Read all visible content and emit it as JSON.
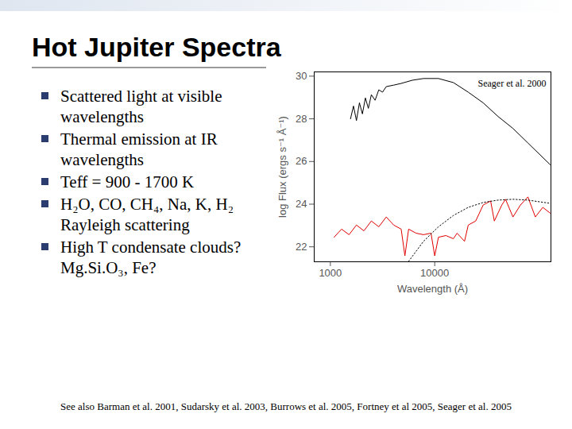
{
  "title": "Hot Jupiter Spectra",
  "bullets": [
    "Scattered light at visible wavelengths",
    "Thermal emission at IR wavelengths",
    "Teff = 900 - 1700 K",
    "H₂O, CO, CH₄, Na, K, H₂ Rayleigh scattering",
    "High T condensate clouds? Mg.Si.O₃, Fe?"
  ],
  "footer": "See also Barman et al. 2001,  Sudarsky et al. 2003, Burrows et al. 2005, Fortney et al 2005, Seager et al. 2005",
  "chart_data": {
    "type": "line",
    "annotation": "Seager et al. 2000",
    "x_label": "Wavelength (Å)",
    "y_label": "log Flux (ergs s⁻¹ Å⁻¹)",
    "log": "x",
    "grid": false,
    "xlim": [
      700,
      130000
    ],
    "xticks": [
      1000,
      10000
    ],
    "ylim": [
      21.3,
      30.2
    ],
    "yticks": [
      22,
      24,
      26,
      28,
      30
    ],
    "series": [
      {
        "color": "#000000",
        "line_style": "solid",
        "x": [
          1560,
          1665,
          1778,
          1899,
          2028,
          2166,
          2313,
          2470,
          2683,
          2912,
          3162,
          3433,
          4047,
          4771,
          6106,
          7815,
          10860,
          15090,
          20960,
          29130,
          40470,
          56230,
          78150,
          127900
        ],
        "values": [
          28.0,
          28.6,
          27.92,
          28.75,
          28.23,
          28.98,
          28.49,
          29.13,
          28.87,
          29.36,
          29.25,
          29.51,
          29.58,
          29.66,
          29.81,
          29.89,
          29.89,
          29.7,
          29.25,
          28.75,
          28.11,
          27.55,
          26.87,
          25.85
        ]
      },
      {
        "color": "#e00000",
        "line_style": "solid",
        "x": [
          1086,
          1280,
          1510,
          1778,
          2096,
          2470,
          2912,
          3433,
          4047,
          4771,
          5179,
          5623,
          6629,
          7815,
          9213,
          10000,
          10860,
          12800,
          15090,
          16380,
          19310,
          20960,
          24710,
          29130,
          34340,
          37260,
          43940,
          47720,
          56230,
          66290,
          78150,
          92130,
          108600,
          127900
        ],
        "values": [
          22.45,
          22.83,
          22.57,
          23.02,
          22.75,
          23.21,
          22.94,
          23.4,
          23.02,
          22.83,
          21.58,
          22.83,
          22.64,
          22.57,
          22.64,
          21.58,
          22.45,
          22.53,
          22.38,
          22.64,
          22.26,
          23.02,
          23.21,
          23.96,
          24.15,
          23.21,
          23.96,
          24.23,
          23.4,
          23.96,
          24.34,
          23.4,
          23.85,
          23.58
        ]
      },
      {
        "color": "#000000",
        "line_style": "dotted",
        "x": [
          5623,
          7815,
          10860,
          15090,
          20960,
          29130,
          40470,
          56230,
          78150,
          127900
        ],
        "values": [
          21.32,
          22.26,
          22.94,
          23.47,
          23.85,
          24.08,
          24.19,
          24.23,
          24.19,
          24.04
        ]
      }
    ]
  }
}
